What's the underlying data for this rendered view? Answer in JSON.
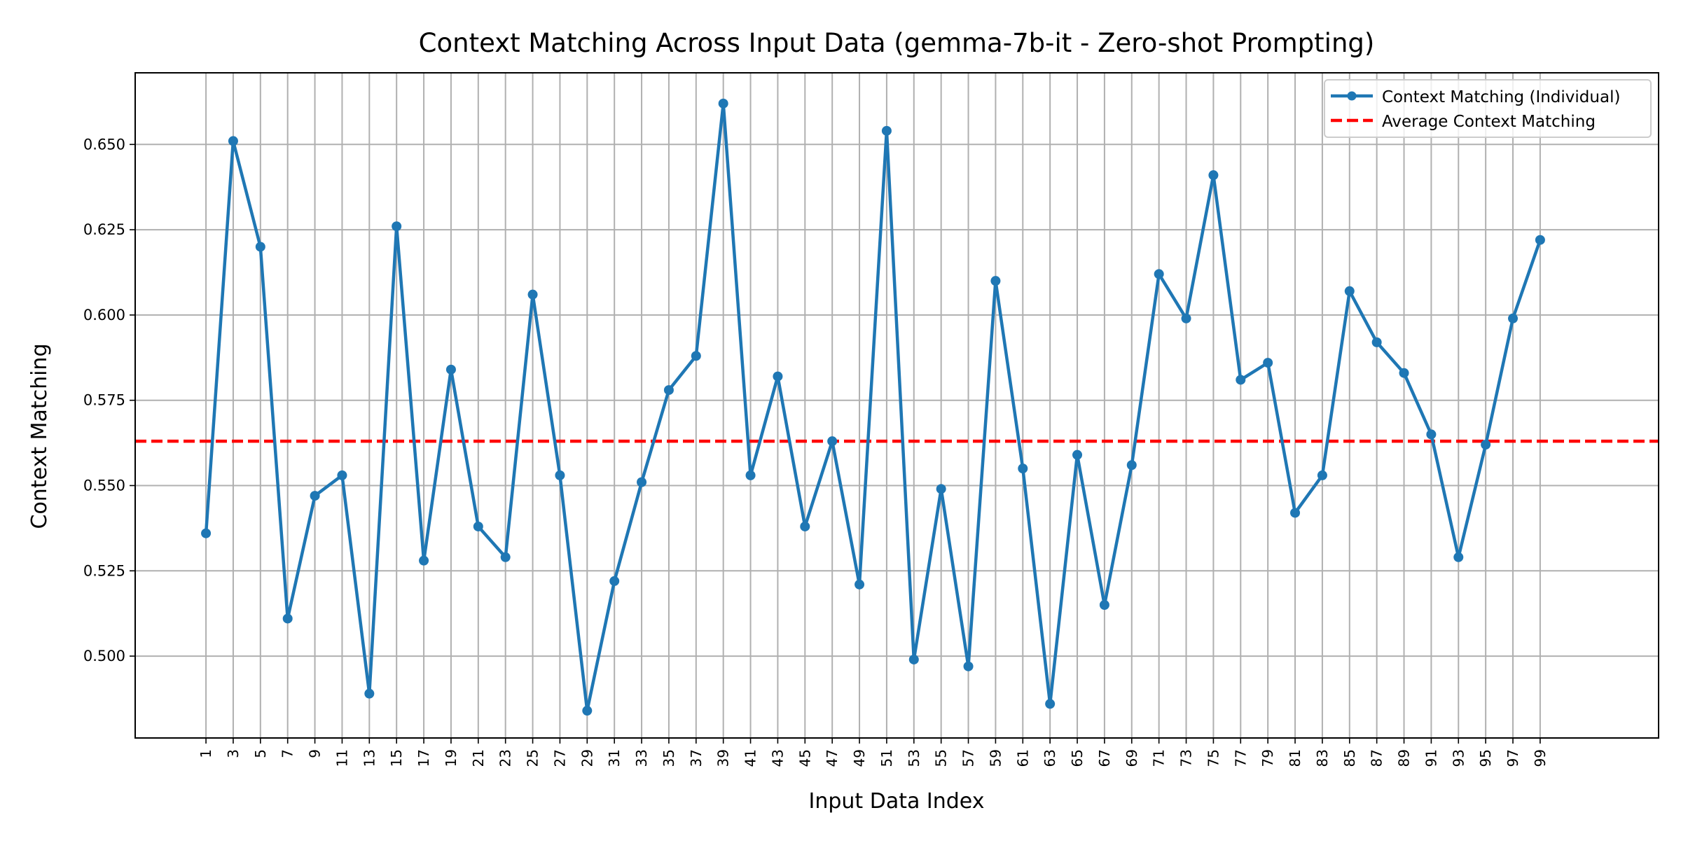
{
  "chart_data": {
    "type": "line",
    "title": "Context Matching Across Input Data (gemma-7b-it - Zero-shot Prompting)",
    "xlabel": "Input Data Index",
    "ylabel": "Context Matching",
    "x_ticks": [
      1,
      3,
      5,
      7,
      9,
      11,
      13,
      15,
      17,
      19,
      21,
      23,
      25,
      27,
      29,
      31,
      33,
      35,
      37,
      39,
      41,
      43,
      45,
      47,
      49,
      51,
      53,
      55,
      57,
      59,
      61,
      63,
      65,
      67,
      69,
      71,
      73,
      75,
      77,
      79,
      81,
      83,
      85,
      87,
      89,
      91,
      93,
      95,
      97,
      99
    ],
    "y_ticks": [
      "0.500",
      "0.525",
      "0.550",
      "0.575",
      "0.600",
      "0.625",
      "0.650"
    ],
    "xlim": [
      -4.2,
      107.7
    ],
    "ylim": [
      0.476,
      0.671
    ],
    "grid": true,
    "legend_position": "top-right",
    "series": [
      {
        "name": "Context Matching (Individual)",
        "color": "#1f77b4",
        "style": "line-with-markers",
        "x": [
          1,
          3,
          5,
          7,
          9,
          11,
          13,
          15,
          17,
          19,
          21,
          23,
          25,
          27,
          29,
          31,
          33,
          35,
          37,
          39,
          41,
          43,
          45,
          47,
          49,
          51,
          53,
          55,
          57,
          59,
          61,
          63,
          65,
          67,
          69,
          71,
          73,
          75,
          77,
          79,
          81,
          83,
          85,
          87,
          89,
          91,
          93,
          95,
          97,
          99
        ],
        "values": [
          0.536,
          0.651,
          0.62,
          0.511,
          0.547,
          0.553,
          0.489,
          0.626,
          0.528,
          0.584,
          0.538,
          0.529,
          0.606,
          0.553,
          0.484,
          0.522,
          0.551,
          0.578,
          0.588,
          0.662,
          0.553,
          0.582,
          0.538,
          0.563,
          0.521,
          0.654,
          0.499,
          0.549,
          0.497,
          0.61,
          0.555,
          0.486,
          0.559,
          0.515,
          0.556,
          0.612,
          0.599,
          0.641,
          0.581,
          0.586,
          0.542,
          0.553,
          0.607,
          0.592,
          0.583,
          0.565,
          0.529,
          0.562,
          0.599,
          0.622
        ]
      },
      {
        "name": "Average Context Matching",
        "color": "#ff0000",
        "style": "dashed-horizontal",
        "value": 0.563
      }
    ]
  }
}
